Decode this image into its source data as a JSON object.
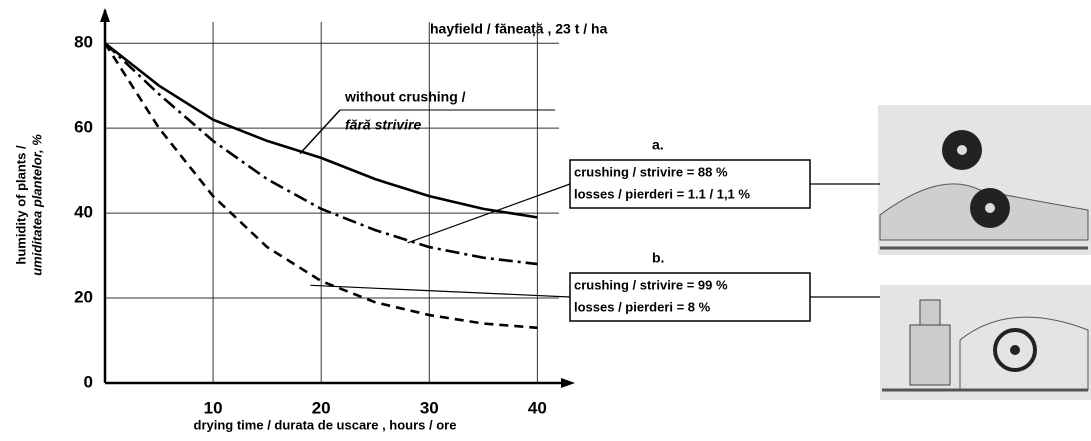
{
  "chart_data": {
    "type": "line",
    "title": "hayfield / făneață , 23 t / ha",
    "xlabel": "drying time / durata de uscare , hours / ore",
    "ylabel": [
      "humidity of plants /",
      "umiditatea plantelor, %"
    ],
    "x": [
      0,
      5,
      10,
      15,
      20,
      25,
      30,
      35,
      40
    ],
    "series": [
      {
        "name": [
          "without crushing /",
          "fără strivire"
        ],
        "color": "#000000",
        "style": "solid",
        "values": [
          80,
          70,
          62,
          57,
          53,
          48,
          44,
          41,
          39
        ]
      },
      {
        "color": "#000000",
        "style": "dashdot",
        "values": [
          80,
          68,
          57,
          48,
          41,
          36,
          32,
          29.5,
          28
        ]
      },
      {
        "color": "#000000",
        "style": "dashed",
        "values": [
          80,
          60,
          44,
          32,
          24,
          19,
          16,
          14,
          13
        ]
      }
    ],
    "xlim": [
      0,
      42
    ],
    "ylim": [
      0,
      85
    ],
    "xticks": [
      10,
      20,
      30,
      40
    ],
    "yticks": [
      0,
      20,
      40,
      60,
      80
    ],
    "grid": true,
    "panels": [
      {
        "label": "a.",
        "lines": [
          "crushing  /  strivire = 88 %",
          "losses /  pierderi = 1.1 / 1,1 %"
        ]
      },
      {
        "label": "b.",
        "lines": [
          "crushing  /  strivire = 99 %",
          "losses /  pierderi =  8 %"
        ]
      }
    ]
  }
}
